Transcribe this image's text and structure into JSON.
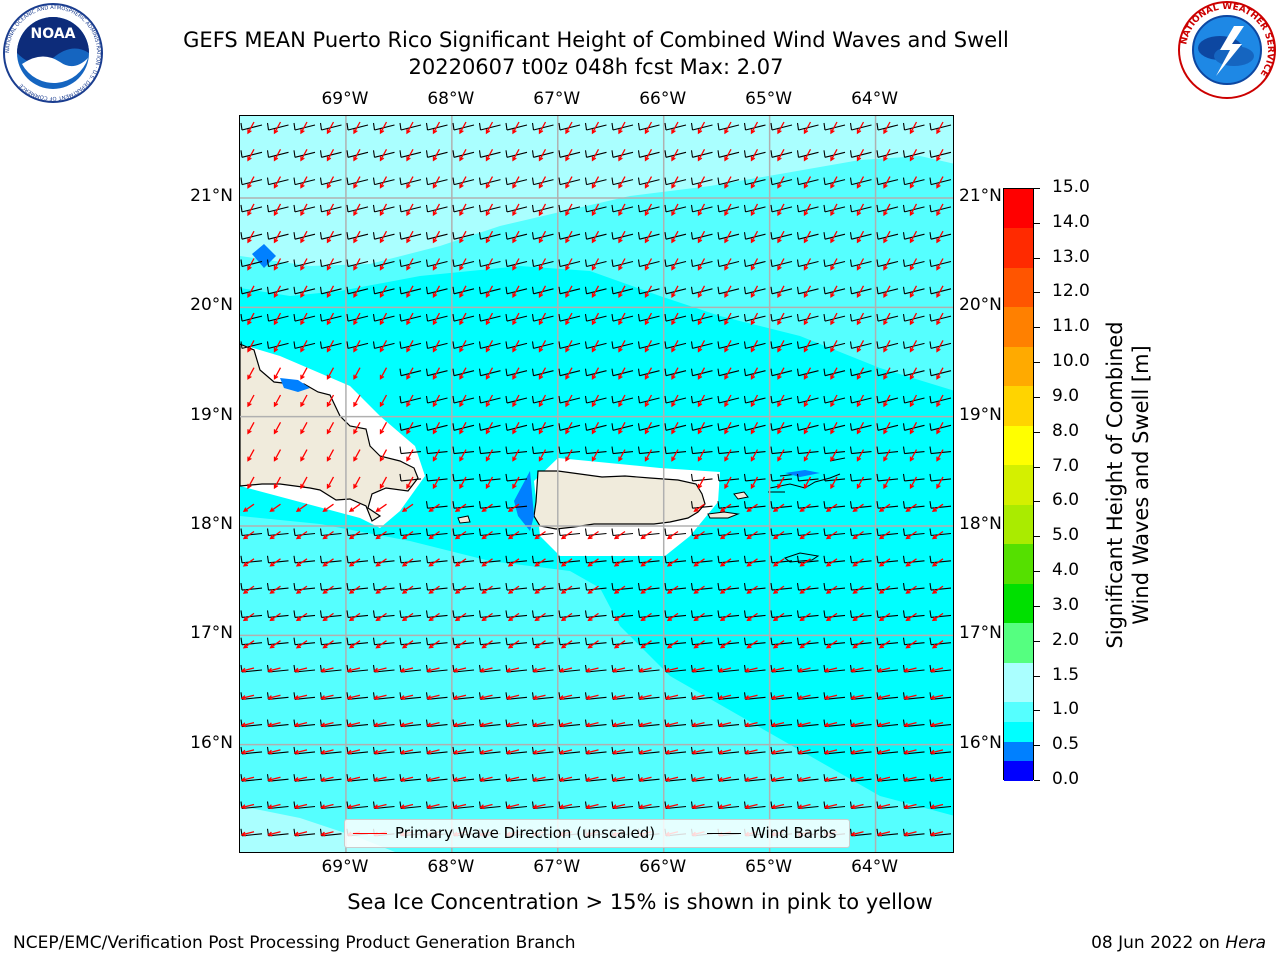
{
  "header": {
    "title_line1": "GEFS MEAN Puerto Rico Significant Height of Combined Wind Waves and Swell",
    "title_line2": "20220607 t00z 048h fcst   Max: 2.07"
  },
  "logos": {
    "noaa": {
      "center_text": "NOAA",
      "ring_text": "NATIONAL OCEANIC AND ATMOSPHERIC ADMINISTRATION · U.S. DEPARTMENT OF COMMERCE"
    },
    "nws": {
      "ring_text": "NATIONAL WEATHER SERVICE"
    }
  },
  "map": {
    "longitude_labels": [
      "69°W",
      "68°W",
      "67°W",
      "66°W",
      "65°W",
      "64°W"
    ],
    "latitude_labels": [
      "21°N",
      "20°N",
      "19°N",
      "18°N",
      "17°N",
      "16°N"
    ],
    "longitudes": [
      -69,
      -68,
      -67,
      -66,
      -65,
      -64
    ],
    "latitudes": [
      21,
      20,
      19,
      18,
      17,
      16
    ],
    "extent": {
      "lon_min": -70,
      "lon_max": -63.25,
      "lat_min": 15.0,
      "lat_max": 21.75
    },
    "colors": {
      "ocean_main": "#00ffff",
      "ocean_light": "#55ffff",
      "ocean_lighter": "#aaffff",
      "land": "#f0ebdc",
      "shallow": "#0080ff",
      "wave_arrow": "#ff0000",
      "wind_barb": "#000000"
    },
    "legend": {
      "wave_label": "Primary Wave Direction (unscaled)",
      "wind_label": "Wind Barbs"
    }
  },
  "colorbar": {
    "title_line1": "Significant Height of Combined",
    "title_line2": "Wind Waves and Swell [m]",
    "levels": [
      "0.0",
      "0.5",
      "1.0",
      "1.5",
      "2.0",
      "3.0",
      "4.0",
      "5.0",
      "6.0",
      "7.0",
      "8.0",
      "9.0",
      "10.0",
      "11.0",
      "12.0",
      "13.0",
      "14.0",
      "15.0"
    ],
    "colors": [
      "#0000ff",
      "#0080ff",
      "#00ffff",
      "#55ffff",
      "#aaffff",
      "#55ff80",
      "#00e000",
      "#55e000",
      "#aaeb00",
      "#d4f000",
      "#ffff00",
      "#ffd400",
      "#ffaa00",
      "#ff8000",
      "#ff5500",
      "#ff2a00",
      "#ff0000"
    ]
  },
  "footer": {
    "note": "Sea Ice Concentration > 15% is shown in pink to yellow",
    "left": "NCEP/EMC/Verification Post Processing Product Generation Branch",
    "right_prefix": "08 Jun 2022 on ",
    "right_machine": "Hera"
  }
}
